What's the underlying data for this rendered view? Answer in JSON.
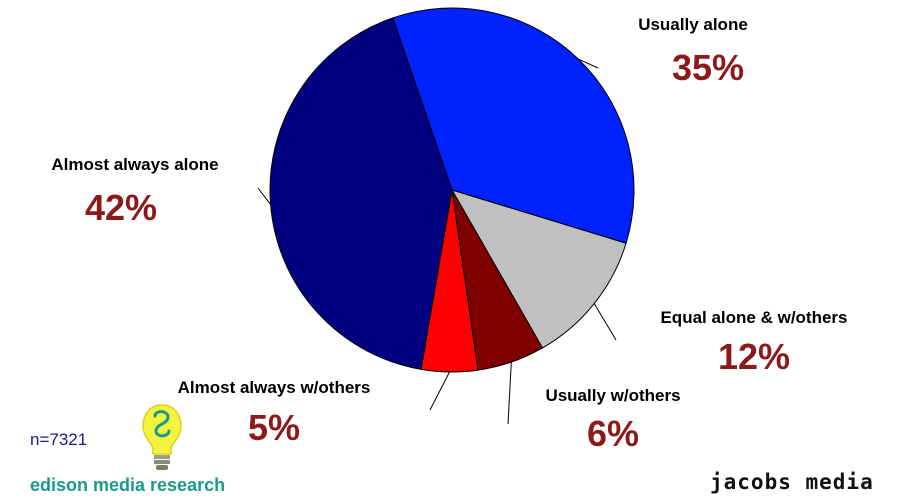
{
  "chart_data": {
    "type": "pie",
    "title": "",
    "slices": [
      {
        "label": "Usually alone",
        "value": 35,
        "pct_text": "35%",
        "color": "#0022ff"
      },
      {
        "label": "Equal alone & w/others",
        "value": 12,
        "pct_text": "12%",
        "color": "#c0c0c0"
      },
      {
        "label": "Usually w/others",
        "value": 6,
        "pct_text": "6%",
        "color": "#800000"
      },
      {
        "label": "Almost always w/others",
        "value": 5,
        "pct_text": "5%",
        "color": "#ff0000"
      },
      {
        "label": "Almost always alone",
        "value": 42,
        "pct_text": "42%",
        "color": "#000080"
      }
    ]
  },
  "footer": {
    "sample": "n=7321",
    "source_left": "edison media research",
    "source_right": "jacobs media"
  }
}
